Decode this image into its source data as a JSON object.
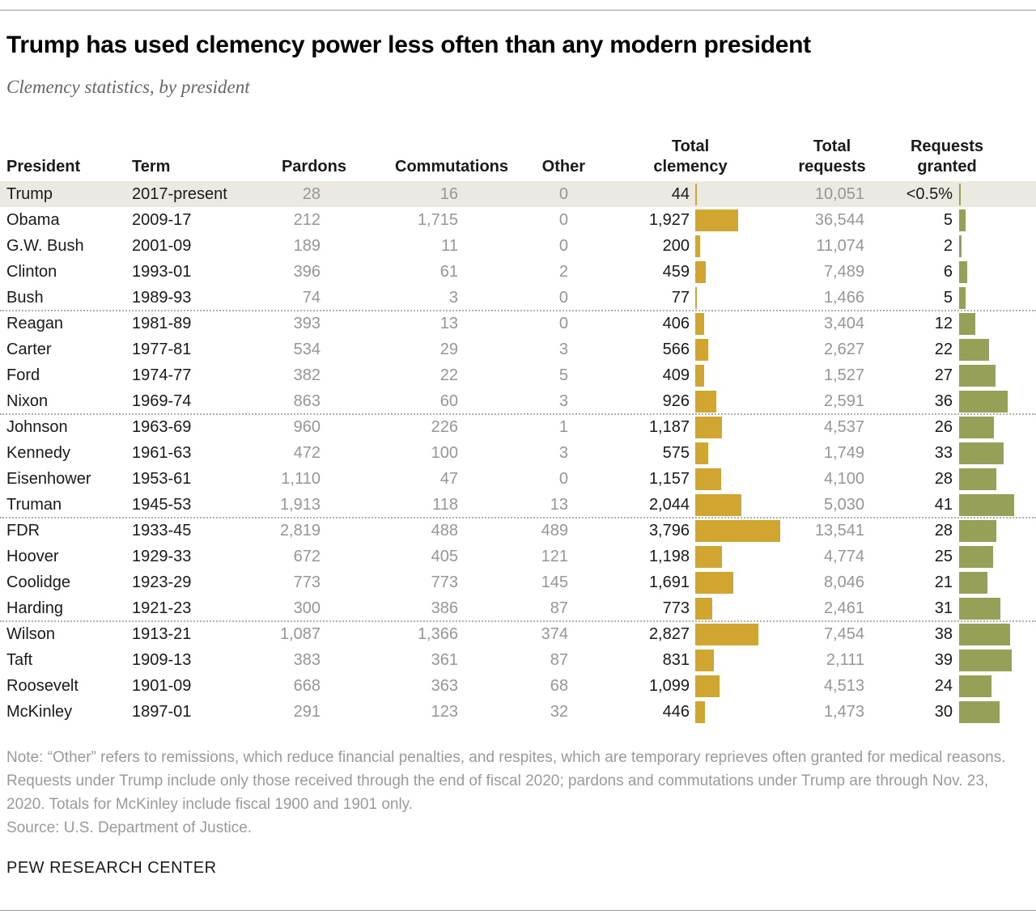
{
  "header": {
    "title": "Trump has used clemency power less often than any modern president",
    "subtitle": "Clemency statistics, by president"
  },
  "table": {
    "headers": [
      "President",
      "Term",
      "Pardons",
      "Commutations",
      "Other",
      "Total\nclemency",
      "Total\nrequests",
      "Requests\ngranted"
    ],
    "rows": [
      {
        "president": "Trump",
        "term": "2017-present",
        "pardons": "28",
        "commutations": "16",
        "other": "0",
        "total_clemency": "44",
        "total_requests": "10,051",
        "requests_granted": "<0.5%",
        "highlight": true,
        "group_end": false
      },
      {
        "president": "Obama",
        "term": "2009-17",
        "pardons": "212",
        "commutations": "1,715",
        "other": "0",
        "total_clemency": "1,927",
        "total_requests": "36,544",
        "requests_granted": "5",
        "highlight": false,
        "group_end": false
      },
      {
        "president": "G.W. Bush",
        "term": "2001-09",
        "pardons": "189",
        "commutations": "11",
        "other": "0",
        "total_clemency": "200",
        "total_requests": "11,074",
        "requests_granted": "2",
        "highlight": false,
        "group_end": false
      },
      {
        "president": "Clinton",
        "term": "1993-01",
        "pardons": "396",
        "commutations": "61",
        "other": "2",
        "total_clemency": "459",
        "total_requests": "7,489",
        "requests_granted": "6",
        "highlight": false,
        "group_end": false
      },
      {
        "president": "Bush",
        "term": "1989-93",
        "pardons": "74",
        "commutations": "3",
        "other": "0",
        "total_clemency": "77",
        "total_requests": "1,466",
        "requests_granted": "5",
        "highlight": false,
        "group_end": true
      },
      {
        "president": "Reagan",
        "term": "1981-89",
        "pardons": "393",
        "commutations": "13",
        "other": "0",
        "total_clemency": "406",
        "total_requests": "3,404",
        "requests_granted": "12",
        "highlight": false,
        "group_end": false
      },
      {
        "president": "Carter",
        "term": "1977-81",
        "pardons": "534",
        "commutations": "29",
        "other": "3",
        "total_clemency": "566",
        "total_requests": "2,627",
        "requests_granted": "22",
        "highlight": false,
        "group_end": false
      },
      {
        "president": "Ford",
        "term": "1974-77",
        "pardons": "382",
        "commutations": "22",
        "other": "5",
        "total_clemency": "409",
        "total_requests": "1,527",
        "requests_granted": "27",
        "highlight": false,
        "group_end": false
      },
      {
        "president": "Nixon",
        "term": "1969-74",
        "pardons": "863",
        "commutations": "60",
        "other": "3",
        "total_clemency": "926",
        "total_requests": "2,591",
        "requests_granted": "36",
        "highlight": false,
        "group_end": true
      },
      {
        "president": "Johnson",
        "term": "1963-69",
        "pardons": "960",
        "commutations": "226",
        "other": "1",
        "total_clemency": "1,187",
        "total_requests": "4,537",
        "requests_granted": "26",
        "highlight": false,
        "group_end": false
      },
      {
        "president": "Kennedy",
        "term": "1961-63",
        "pardons": "472",
        "commutations": "100",
        "other": "3",
        "total_clemency": "575",
        "total_requests": "1,749",
        "requests_granted": "33",
        "highlight": false,
        "group_end": false
      },
      {
        "president": "Eisenhower",
        "term": "1953-61",
        "pardons": "1,110",
        "commutations": "47",
        "other": "0",
        "total_clemency": "1,157",
        "total_requests": "4,100",
        "requests_granted": "28",
        "highlight": false,
        "group_end": false
      },
      {
        "president": "Truman",
        "term": "1945-53",
        "pardons": "1,913",
        "commutations": "118",
        "other": "13",
        "total_clemency": "2,044",
        "total_requests": "5,030",
        "requests_granted": "41",
        "highlight": false,
        "group_end": true
      },
      {
        "president": "FDR",
        "term": "1933-45",
        "pardons": "2,819",
        "commutations": "488",
        "other": "489",
        "total_clemency": "3,796",
        "total_requests": "13,541",
        "requests_granted": "28",
        "highlight": false,
        "group_end": false
      },
      {
        "president": "Hoover",
        "term": "1929-33",
        "pardons": "672",
        "commutations": "405",
        "other": "121",
        "total_clemency": "1,198",
        "total_requests": "4,774",
        "requests_granted": "25",
        "highlight": false,
        "group_end": false
      },
      {
        "president": "Coolidge",
        "term": "1923-29",
        "pardons": "773",
        "commutations": "773",
        "other": "145",
        "total_clemency": "1,691",
        "total_requests": "8,046",
        "requests_granted": "21",
        "highlight": false,
        "group_end": false
      },
      {
        "president": "Harding",
        "term": "1921-23",
        "pardons": "300",
        "commutations": "386",
        "other": "87",
        "total_clemency": "773",
        "total_requests": "2,461",
        "requests_granted": "31",
        "highlight": false,
        "group_end": true
      },
      {
        "president": "Wilson",
        "term": "1913-21",
        "pardons": "1,087",
        "commutations": "1,366",
        "other": "374",
        "total_clemency": "2,827",
        "total_requests": "7,454",
        "requests_granted": "38",
        "highlight": false,
        "group_end": false
      },
      {
        "president": "Taft",
        "term": "1909-13",
        "pardons": "383",
        "commutations": "361",
        "other": "87",
        "total_clemency": "831",
        "total_requests": "2,111",
        "requests_granted": "39",
        "highlight": false,
        "group_end": false
      },
      {
        "president": "Roosevelt",
        "term": "1901-09",
        "pardons": "668",
        "commutations": "363",
        "other": "68",
        "total_clemency": "1,099",
        "total_requests": "4,513",
        "requests_granted": "24",
        "highlight": false,
        "group_end": false
      },
      {
        "president": "McKinley",
        "term": "1897-01",
        "pardons": "291",
        "commutations": "123",
        "other": "32",
        "total_clemency": "446",
        "total_requests": "1,473",
        "requests_granted": "30",
        "highlight": false,
        "group_end": false
      }
    ]
  },
  "chart_data": {
    "type": "table",
    "title": "Trump has used clemency power less often than any modern president",
    "subtitle": "Clemency statistics, by president",
    "columns": [
      "President",
      "Term",
      "Pardons",
      "Commutations",
      "Other",
      "Total clemency",
      "Total requests",
      "Requests granted (%)"
    ],
    "bar_columns": [
      {
        "column": "Total clemency",
        "type": "bar",
        "color": "#d1a630",
        "axis_max": 3796
      },
      {
        "column": "Requests granted (%)",
        "type": "bar",
        "color": "#96a057",
        "axis_max": 41
      }
    ],
    "rows": [
      [
        "Trump",
        "2017-present",
        28,
        16,
        0,
        44,
        10051,
        "<0.5"
      ],
      [
        "Obama",
        "2009-17",
        212,
        1715,
        0,
        1927,
        36544,
        5
      ],
      [
        "G.W. Bush",
        "2001-09",
        189,
        11,
        0,
        200,
        11074,
        2
      ],
      [
        "Clinton",
        "1993-01",
        396,
        61,
        2,
        459,
        7489,
        6
      ],
      [
        "Bush",
        "1989-93",
        74,
        3,
        0,
        77,
        1466,
        5
      ],
      [
        "Reagan",
        "1981-89",
        393,
        13,
        0,
        406,
        3404,
        12
      ],
      [
        "Carter",
        "1977-81",
        534,
        29,
        3,
        566,
        2627,
        22
      ],
      [
        "Ford",
        "1974-77",
        382,
        22,
        5,
        409,
        1527,
        27
      ],
      [
        "Nixon",
        "1969-74",
        863,
        60,
        3,
        926,
        2591,
        36
      ],
      [
        "Johnson",
        "1963-69",
        960,
        226,
        1,
        1187,
        4537,
        26
      ],
      [
        "Kennedy",
        "1961-63",
        472,
        100,
        3,
        575,
        1749,
        33
      ],
      [
        "Eisenhower",
        "1953-61",
        1110,
        47,
        0,
        1157,
        4100,
        28
      ],
      [
        "Truman",
        "1945-53",
        1913,
        118,
        13,
        2044,
        5030,
        41
      ],
      [
        "FDR",
        "1933-45",
        2819,
        488,
        489,
        3796,
        13541,
        28
      ],
      [
        "Hoover",
        "1929-33",
        672,
        405,
        121,
        1198,
        4774,
        25
      ],
      [
        "Coolidge",
        "1923-29",
        773,
        773,
        145,
        1691,
        8046,
        21
      ],
      [
        "Harding",
        "1921-23",
        300,
        386,
        87,
        773,
        2461,
        31
      ],
      [
        "Wilson",
        "1913-21",
        1087,
        1366,
        374,
        2827,
        7454,
        38
      ],
      [
        "Taft",
        "1909-13",
        383,
        361,
        87,
        831,
        2111,
        39
      ],
      [
        "Roosevelt",
        "1901-09",
        668,
        363,
        68,
        1099,
        4513,
        24
      ],
      [
        "McKinley",
        "1897-01",
        291,
        123,
        32,
        446,
        1473,
        30
      ]
    ]
  },
  "footer": {
    "note": "Note: “Other” refers to remissions, which reduce financial penalties, and respites, which are temporary reprieves often granted for medical reasons. Requests under Trump include only those received through the end of fiscal 2020; pardons and commutations under Trump are through Nov. 23, 2020. Totals for McKinley include fiscal 1900 and 1901 only.",
    "source": "Source: U.S. Department of Justice.",
    "brand": "PEW RESEARCH CENTER"
  },
  "colors": {
    "clemency_bar_gold": "#d1a630",
    "granted_bar_green": "#96a057",
    "highlight_row_beige": "#eceae0",
    "gray_number_text": "#969696",
    "rule_gray": "#9a9a9a"
  }
}
